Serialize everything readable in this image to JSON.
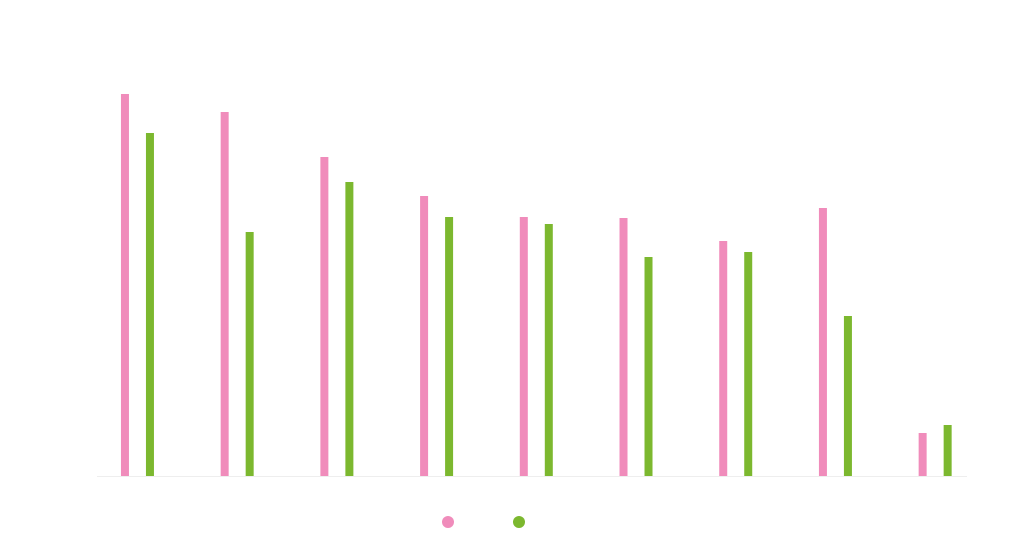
{
  "chart_data": {
    "type": "bar",
    "categories": [
      null,
      null,
      null,
      null,
      null,
      null,
      null,
      null,
      null
    ],
    "series": [
      {
        "color": "#f08cbb",
        "values": [
          382,
          364,
          319,
          280,
          259,
          258,
          235,
          268,
          43
        ]
      },
      {
        "color": "#7cb82f",
        "values": [
          343,
          244,
          294,
          259,
          252,
          219,
          224,
          160,
          51
        ]
      }
    ],
    "ylim": [
      0,
      400
    ]
  }
}
